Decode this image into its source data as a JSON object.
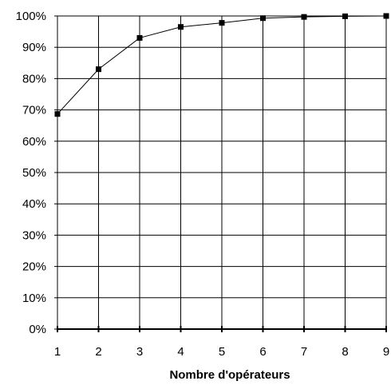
{
  "chart_data": {
    "type": "line",
    "title": "",
    "xlabel": "Nombre d'opérateurs",
    "ylabel": "",
    "x": [
      1,
      2,
      3,
      4,
      5,
      6,
      7,
      8,
      9
    ],
    "series": [
      {
        "values": [
          0.687,
          0.83,
          0.93,
          0.965,
          0.978,
          0.993,
          0.997,
          0.999,
          1.0
        ]
      }
    ],
    "xlim": [
      1,
      9
    ],
    "ylim": [
      0,
      1
    ],
    "x_ticks": [
      "1",
      "2",
      "3",
      "4",
      "5",
      "6",
      "7",
      "8",
      "9"
    ],
    "y_ticks": [
      "0%",
      "10%",
      "20%",
      "30%",
      "40%",
      "50%",
      "60%",
      "70%",
      "80%",
      "90%",
      "100%"
    ],
    "grid": true,
    "legend": "none",
    "marker": "square",
    "line_color": "#000000",
    "grid_color": "#000000"
  }
}
